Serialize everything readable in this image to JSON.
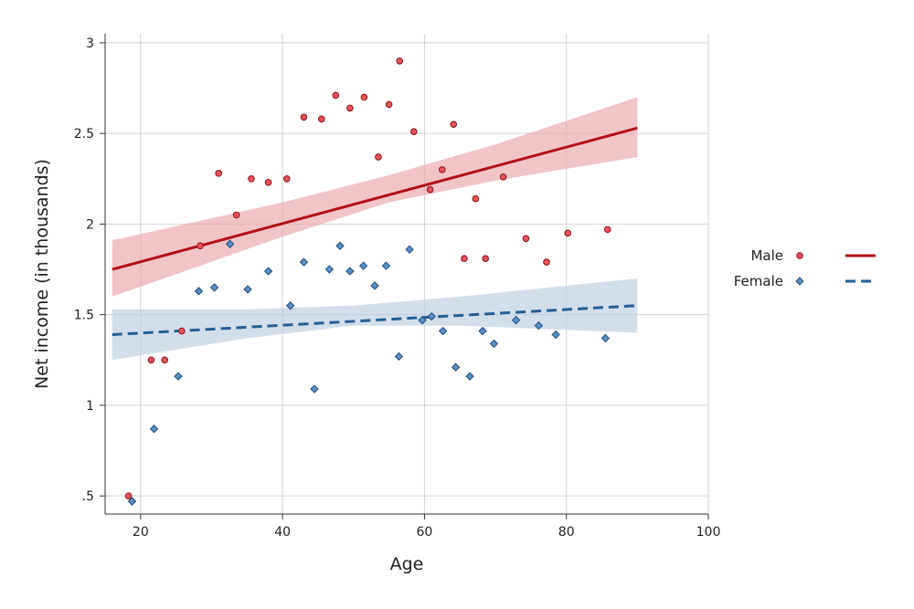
{
  "chart_data": {
    "type": "scatter",
    "title": "",
    "xlabel": "Age",
    "ylabel": "Net income (in thousands)",
    "xlim": [
      15,
      100
    ],
    "ylim": [
      0.4,
      3.05
    ],
    "xticks": [
      20,
      40,
      60,
      80,
      100
    ],
    "xtick_labels": [
      "20",
      "40",
      "60",
      "80",
      "100"
    ],
    "yticks": [
      0.5,
      1,
      1.5,
      2,
      2.5,
      3
    ],
    "ytick_labels": [
      ".5",
      "1",
      "1.5",
      "2",
      "2.5",
      "3"
    ],
    "grid": true,
    "legend_position": "right",
    "series": [
      {
        "name": "Male",
        "marker": "circle",
        "color": "#e8545a",
        "line_color": "#b30f16",
        "line_style": "solid",
        "band_color": "#e9a6aa",
        "points": [
          [
            18.3,
            0.5
          ],
          [
            21.5,
            1.25
          ],
          [
            23.4,
            1.25
          ],
          [
            25.8,
            1.41
          ],
          [
            28.4,
            1.88
          ],
          [
            31.0,
            2.28
          ],
          [
            33.5,
            2.05
          ],
          [
            35.6,
            2.25
          ],
          [
            38.0,
            2.23
          ],
          [
            40.6,
            2.25
          ],
          [
            43.0,
            2.59
          ],
          [
            45.5,
            2.58
          ],
          [
            47.5,
            2.71
          ],
          [
            49.5,
            2.64
          ],
          [
            51.5,
            2.7
          ],
          [
            53.5,
            2.37
          ],
          [
            55.0,
            2.66
          ],
          [
            56.5,
            2.9
          ],
          [
            58.5,
            2.51
          ],
          [
            60.8,
            2.19
          ],
          [
            62.5,
            2.3
          ],
          [
            64.1,
            2.55
          ],
          [
            65.6,
            1.81
          ],
          [
            67.2,
            2.14
          ],
          [
            68.6,
            1.81
          ],
          [
            71.1,
            2.26
          ],
          [
            74.3,
            1.92
          ],
          [
            77.2,
            1.79
          ],
          [
            80.2,
            1.95
          ],
          [
            85.8,
            1.97
          ]
        ],
        "fit": {
          "x0": 16,
          "y0": 1.75,
          "x1": 90,
          "y1": 2.53
        },
        "band": [
          [
            16,
            1.6,
            1.91
          ],
          [
            40,
            1.93,
            2.12
          ],
          [
            55,
            2.12,
            2.27
          ],
          [
            70,
            2.24,
            2.44
          ],
          [
            90,
            2.37,
            2.7
          ]
        ]
      },
      {
        "name": "Female",
        "marker": "diamond",
        "color": "#5a8fc7",
        "line_color": "#245e94",
        "line_style": "dashed",
        "band_color": "#bccde0",
        "points": [
          [
            18.8,
            0.47
          ],
          [
            21.9,
            0.87
          ],
          [
            25.3,
            1.16
          ],
          [
            28.2,
            1.63
          ],
          [
            30.4,
            1.65
          ],
          [
            32.6,
            1.89
          ],
          [
            35.1,
            1.64
          ],
          [
            38.0,
            1.74
          ],
          [
            41.1,
            1.55
          ],
          [
            43.0,
            1.79
          ],
          [
            44.5,
            1.09
          ],
          [
            46.6,
            1.75
          ],
          [
            48.1,
            1.88
          ],
          [
            49.5,
            1.74
          ],
          [
            51.4,
            1.77
          ],
          [
            53.0,
            1.66
          ],
          [
            54.6,
            1.77
          ],
          [
            56.4,
            1.27
          ],
          [
            57.9,
            1.86
          ],
          [
            59.7,
            1.47
          ],
          [
            61.0,
            1.49
          ],
          [
            62.6,
            1.41
          ],
          [
            64.4,
            1.21
          ],
          [
            66.4,
            1.16
          ],
          [
            68.2,
            1.41
          ],
          [
            69.8,
            1.34
          ],
          [
            72.9,
            1.47
          ],
          [
            76.1,
            1.44
          ],
          [
            78.5,
            1.39
          ],
          [
            85.5,
            1.37
          ]
        ],
        "fit": {
          "x0": 16,
          "y0": 1.39,
          "x1": 90,
          "y1": 1.55
        },
        "band": [
          [
            16,
            1.25,
            1.53
          ],
          [
            35,
            1.37,
            1.53
          ],
          [
            50,
            1.44,
            1.55
          ],
          [
            65,
            1.44,
            1.6
          ],
          [
            90,
            1.4,
            1.7
          ]
        ]
      }
    ]
  }
}
